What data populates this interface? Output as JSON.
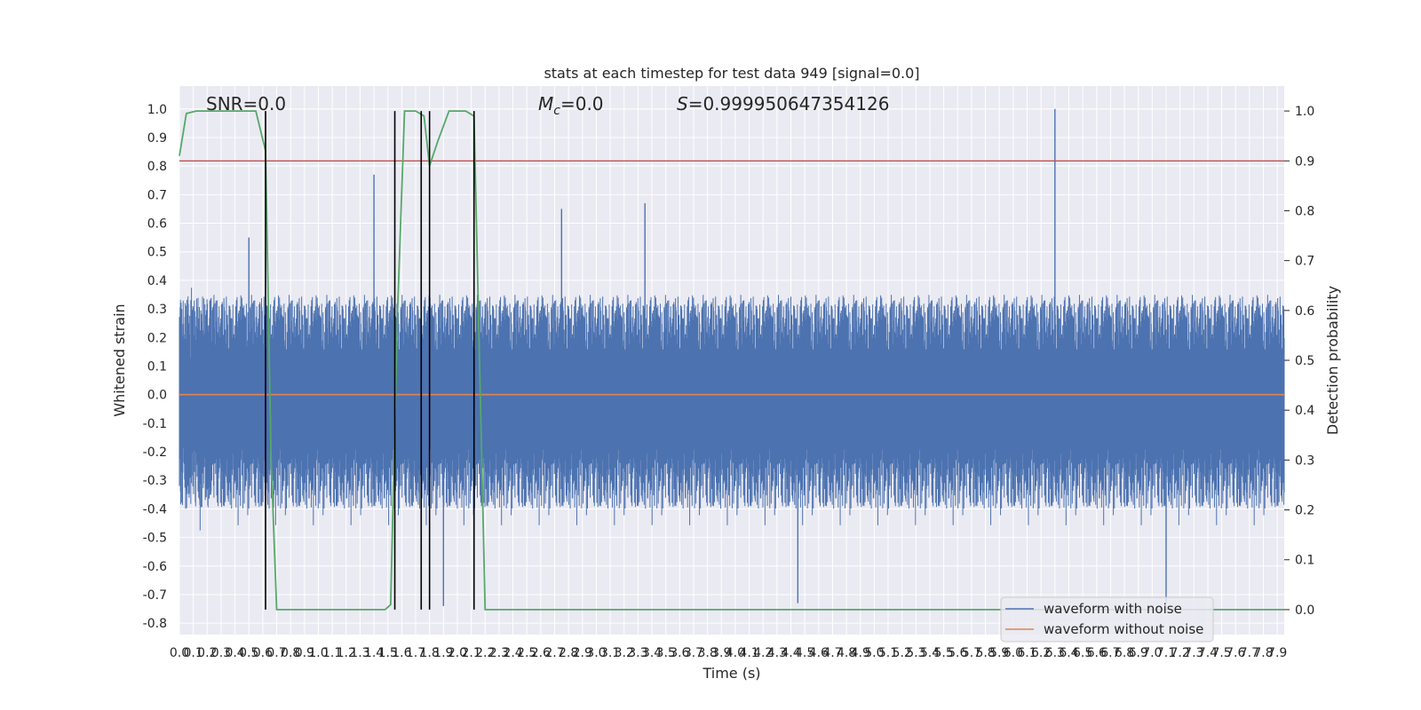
{
  "chart_data": {
    "type": "line",
    "title": "stats at each timestep for test data 949 [signal=0.0]",
    "xlabel": "Time (s)",
    "ylabel": "Whitened strain",
    "y2label": "Detection probability",
    "xlim": [
      0.0,
      7.95
    ],
    "ylim": [
      -0.84,
      1.08
    ],
    "y2lim": [
      -0.05,
      1.05
    ],
    "xticks": [
      0.0,
      0.1,
      0.2,
      0.3,
      0.4,
      0.5,
      0.6,
      0.7,
      0.8,
      0.9,
      1.0,
      1.1,
      1.2,
      1.3,
      1.4,
      1.5,
      1.6,
      1.7,
      1.8,
      1.9,
      2.0,
      2.1,
      2.2,
      2.3,
      2.4,
      2.5,
      2.6,
      2.7,
      2.8,
      2.9,
      3.0,
      3.1,
      3.2,
      3.3,
      3.4,
      3.5,
      3.6,
      3.7,
      3.8,
      3.9,
      4.0,
      4.1,
      4.2,
      4.3,
      4.4,
      4.5,
      4.6,
      4.7,
      4.8,
      4.9,
      5.0,
      5.1,
      5.2,
      5.3,
      5.4,
      5.5,
      5.6,
      5.7,
      5.8,
      5.9,
      6.0,
      6.1,
      6.2,
      6.3,
      6.4,
      6.5,
      6.6,
      6.7,
      6.8,
      6.9,
      7.0,
      7.1,
      7.2,
      7.3,
      7.4,
      7.5,
      7.6,
      7.7,
      7.8,
      7.9
    ],
    "yticks": [
      -0.8,
      -0.7,
      -0.6,
      -0.5,
      -0.4,
      -0.3,
      -0.2,
      -0.1,
      0.0,
      0.1,
      0.2,
      0.3,
      0.4,
      0.5,
      0.6,
      0.7,
      0.8,
      0.9,
      1.0
    ],
    "y2ticks": [
      0.0,
      0.1,
      0.2,
      0.3,
      0.4,
      0.5,
      0.6,
      0.7,
      0.8,
      0.9,
      1.0
    ],
    "grid": true,
    "legend_position": "lower-right",
    "annotations": {
      "snr": "SNR=0.0",
      "mc": "=0.0",
      "mc_symbol": "M",
      "mc_subscript": "c",
      "s": "=0.999950647354126",
      "s_symbol": "S"
    },
    "series": [
      {
        "name": "waveform with noise",
        "color": "#4c72b0",
        "axis": "left",
        "band_min": -0.4,
        "band_max": 0.35,
        "spikes": [
          {
            "x": 0.5,
            "y": 0.55
          },
          {
            "x": 1.4,
            "y": 0.77
          },
          {
            "x": 2.75,
            "y": 0.65
          },
          {
            "x": 3.35,
            "y": 0.67
          },
          {
            "x": 6.3,
            "y": 1.0
          },
          {
            "x": 1.9,
            "y": -0.74
          },
          {
            "x": 4.45,
            "y": -0.73
          },
          {
            "x": 7.1,
            "y": -0.73
          }
        ]
      },
      {
        "name": "waveform without noise",
        "color": "#dd8452",
        "axis": "left",
        "x": [
          0.0,
          7.95
        ],
        "values": [
          0.0,
          0.0
        ]
      },
      {
        "color": "#55a868",
        "axis": "right",
        "x": [
          0.0,
          0.05,
          0.12,
          0.55,
          0.62,
          0.66,
          0.7,
          1.48,
          1.52,
          1.57,
          1.62,
          1.7,
          1.76,
          1.8,
          1.86,
          1.94,
          2.06,
          2.12,
          2.2,
          7.95
        ],
        "values": [
          0.91,
          0.995,
          1.0,
          1.0,
          0.92,
          0.3,
          0.0,
          0.0,
          0.01,
          0.6,
          1.0,
          1.0,
          0.99,
          0.89,
          0.94,
          1.0,
          1.0,
          0.99,
          0.0,
          0.0
        ]
      }
    ],
    "threshold": {
      "value": 0.9,
      "axis": "right",
      "color": "#c44e52"
    },
    "vlines": [
      0.62,
      1.55,
      1.74,
      1.8,
      2.12
    ]
  }
}
